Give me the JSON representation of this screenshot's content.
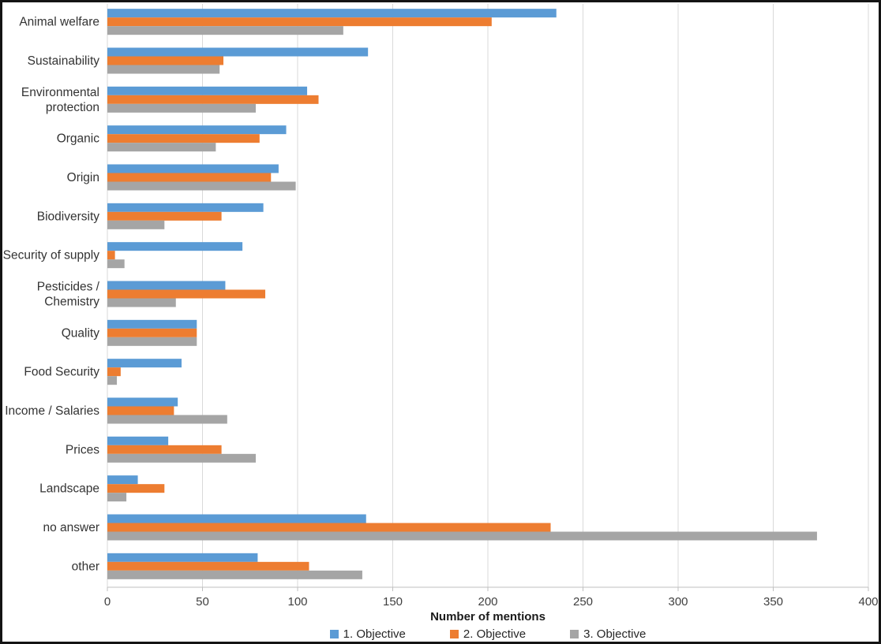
{
  "chart_data": {
    "type": "bar",
    "orientation": "horizontal",
    "title": "",
    "xlabel": "Number of mentions",
    "ylabel": "",
    "xlim": [
      0,
      400
    ],
    "xticks": [
      0,
      50,
      100,
      150,
      200,
      250,
      300,
      350,
      400
    ],
    "grid": "vertical gridlines at each x tick",
    "legend_position": "bottom",
    "categories": [
      "Animal welfare",
      "Sustainability",
      "Environmental protection",
      "Organic",
      "Origin",
      "Biodiversity",
      "Security of supply",
      "Pesticides / Chemistry",
      "Quality",
      "Food Security",
      "Income / Salaries",
      "Prices",
      "Landscape",
      "no answer",
      "other"
    ],
    "category_lines": [
      [
        "Animal welfare"
      ],
      [
        "Sustainability"
      ],
      [
        "Environmental",
        "protection"
      ],
      [
        "Organic"
      ],
      [
        "Origin"
      ],
      [
        "Biodiversity"
      ],
      [
        "Security of supply"
      ],
      [
        "Pesticides /",
        "Chemistry"
      ],
      [
        "Quality"
      ],
      [
        "Food Security"
      ],
      [
        "Income / Salaries"
      ],
      [
        "Prices"
      ],
      [
        "Landscape"
      ],
      [
        "no answer"
      ],
      [
        "other"
      ]
    ],
    "series": [
      {
        "name": "1. Objective",
        "color": "#5B9BD5",
        "values": [
          236,
          137,
          105,
          94,
          90,
          82,
          71,
          62,
          47,
          39,
          37,
          32,
          16,
          136,
          79
        ]
      },
      {
        "name": "2. Objective",
        "color": "#ED7D31",
        "values": [
          202,
          61,
          111,
          80,
          86,
          60,
          4,
          83,
          47,
          7,
          35,
          60,
          30,
          233,
          106
        ]
      },
      {
        "name": "3. Objective",
        "color": "#A5A5A5",
        "values": [
          124,
          59,
          78,
          57,
          99,
          30,
          9,
          36,
          47,
          5,
          63,
          78,
          10,
          373,
          134
        ]
      }
    ]
  },
  "colors": {
    "gridline": "#D9D9D9",
    "axis_line": "#BFBFBF",
    "tick_text": "#404040",
    "category_text": "#333333",
    "frame_border": "#141414"
  }
}
